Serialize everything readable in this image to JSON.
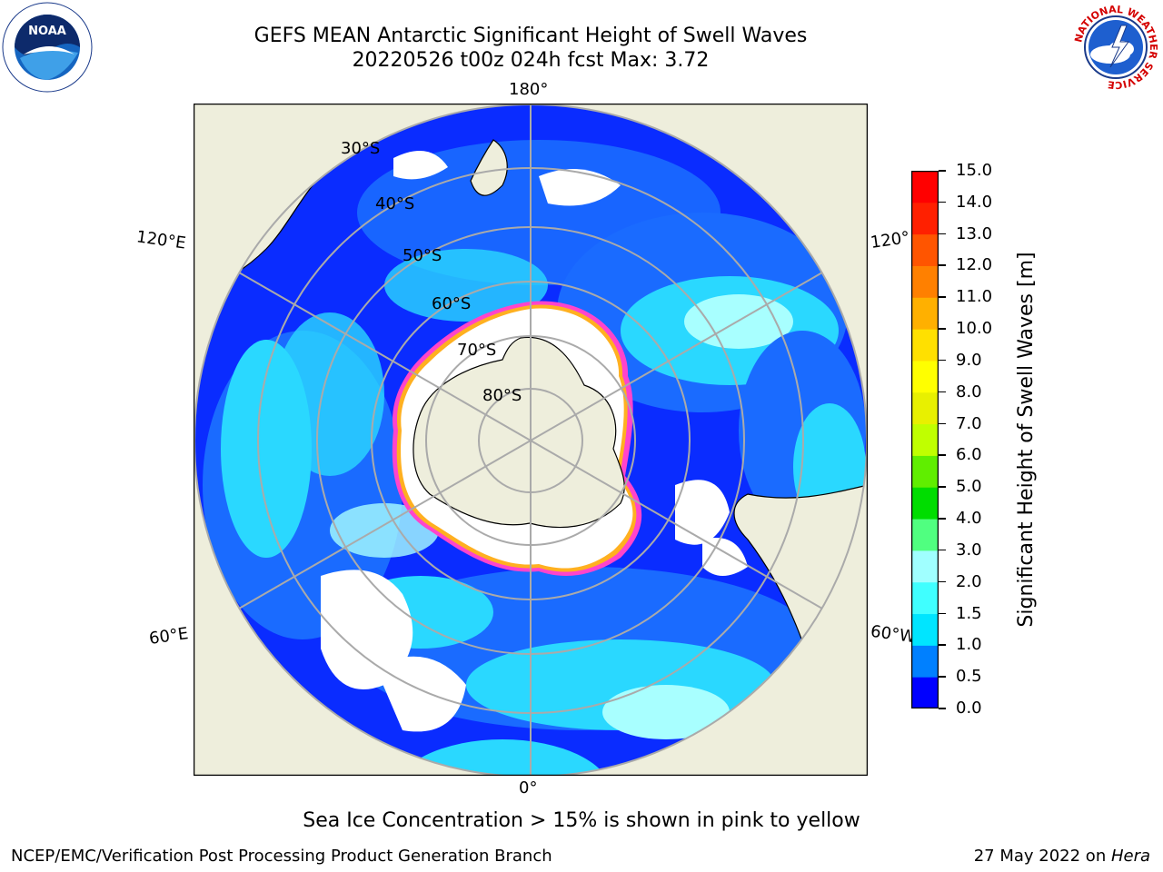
{
  "header": {
    "title_line1": "GEFS MEAN Antarctic Significant Height of Swell Waves",
    "title_line2": "20220526 t00z 024h fcst   Max: 3.72"
  },
  "map": {
    "longitude_labels": {
      "top": "180°",
      "bottom": "0°",
      "upper_left": "120°E",
      "upper_right": "120°",
      "lower_left": "60°E",
      "lower_right": "60°W"
    },
    "latitude_labels": [
      "30°S",
      "40°S",
      "50°S",
      "60°S",
      "70°S",
      "80°S"
    ],
    "colors": {
      "land": "#eeeedc",
      "ice_edge": "#ff44cc",
      "ice_fringe": "#ffb020",
      "grid": "#aaaaaa"
    }
  },
  "colorbar": {
    "label": "Significant Height of Swell Waves [m]",
    "ticks": [
      "0.0",
      "0.5",
      "1.0",
      "1.5",
      "2.0",
      "3.0",
      "4.0",
      "5.0",
      "6.0",
      "7.0",
      "8.0",
      "9.0",
      "10.0",
      "11.0",
      "12.0",
      "13.0",
      "14.0",
      "15.0"
    ],
    "colors": [
      "#0000ff",
      "#0080ff",
      "#00e5ff",
      "#40ffff",
      "#a0ffff",
      "#50ff80",
      "#00dd00",
      "#60ee00",
      "#c0ff00",
      "#e8f000",
      "#ffff00",
      "#ffe000",
      "#ffb000",
      "#ff8000",
      "#ff5500",
      "#ff2000",
      "#ff0000"
    ]
  },
  "notes": {
    "ice": "Sea Ice Concentration > 15% is shown in pink to yellow"
  },
  "footer": {
    "left": "NCEP/EMC/Verification Post Processing Product Generation Branch",
    "right_prefix": "27 May 2022 on ",
    "right_machine": "Hera"
  },
  "logos": {
    "noaa": "NOAA",
    "nws": "NATIONAL WEATHER SERVICE"
  }
}
